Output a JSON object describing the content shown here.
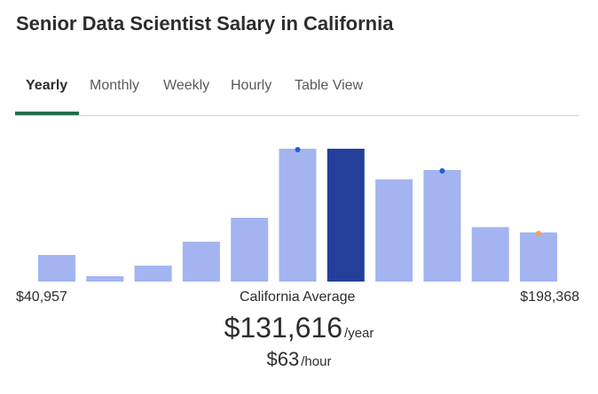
{
  "page": {
    "title": "Senior Data Scientist Salary in California"
  },
  "tabs": [
    {
      "label": "Yearly",
      "active": true
    },
    {
      "label": "Monthly",
      "active": false
    },
    {
      "label": "Weekly",
      "active": false
    },
    {
      "label": "Hourly",
      "active": false
    },
    {
      "label": "Table View",
      "active": false
    }
  ],
  "colors": {
    "bar": "#a3b4f0",
    "bar_highlight": "#233f9a",
    "active_tab_underline": "#1f6f4a",
    "marker_blue": "#1f5ed6",
    "marker_orange": "#f5a05a"
  },
  "chart_data": {
    "type": "bar",
    "categories": [
      "1",
      "2",
      "3",
      "4",
      "5",
      "6",
      "7",
      "8",
      "9",
      "10",
      "11"
    ],
    "values": [
      20,
      4,
      12,
      30,
      48,
      100,
      100,
      77,
      84,
      41,
      37
    ],
    "highlight_index": 6,
    "markers": [
      {
        "bar_index": 5,
        "color": "blue"
      },
      {
        "bar_index": 8,
        "color": "blue"
      },
      {
        "bar_index": 10,
        "color": "orange"
      }
    ],
    "range_min": "$40,957",
    "range_max": "$198,368",
    "center_label": "California Average"
  },
  "average": {
    "yearly_value": "$131,616",
    "yearly_unit": "/year",
    "hourly_value": "$63",
    "hourly_unit": "/hour"
  }
}
